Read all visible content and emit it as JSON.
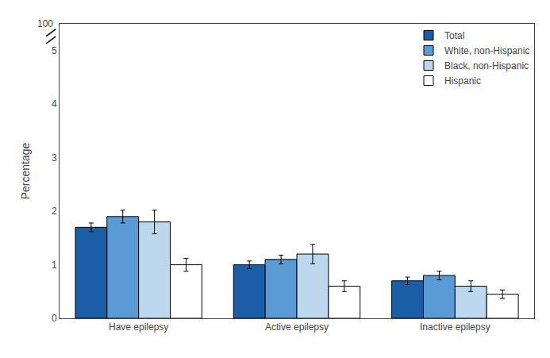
{
  "chart_data": {
    "type": "bar",
    "categories": [
      "Have epilepsy",
      "Active epilepsy",
      "Inactive epilepsy"
    ],
    "series": [
      {
        "name": "Total",
        "color": "#1a5ea8",
        "values": [
          1.7,
          1.0,
          0.7
        ],
        "errors": [
          0.08,
          0.07,
          0.07
        ]
      },
      {
        "name": "White, non-Hispanic",
        "color": "#5b9bd5",
        "values": [
          1.9,
          1.1,
          0.8
        ],
        "errors": [
          0.12,
          0.08,
          0.08
        ]
      },
      {
        "name": "Black, non-Hispanic",
        "color": "#bdd7ee",
        "values": [
          1.8,
          1.2,
          0.6
        ],
        "errors": [
          0.22,
          0.18,
          0.1
        ]
      },
      {
        "name": "Hispanic",
        "color": "#ffffff",
        "values": [
          1.0,
          0.6,
          0.45
        ],
        "errors": [
          0.12,
          0.1,
          0.08
        ]
      }
    ],
    "ylabel": "Percentage",
    "ylim": [
      0,
      5.5
    ],
    "yticks": [
      0,
      1,
      2,
      3,
      4,
      5
    ],
    "annotations": [
      "100"
    ],
    "grid": false,
    "legend": "upper right"
  }
}
